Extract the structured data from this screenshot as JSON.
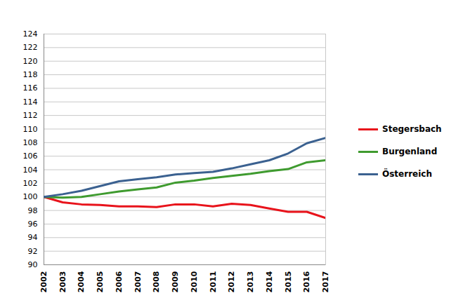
{
  "chart_data": {
    "type": "line",
    "x": [
      2002,
      2003,
      2004,
      2005,
      2006,
      2007,
      2008,
      2009,
      2010,
      2011,
      2012,
      2013,
      2014,
      2015,
      2016,
      2017
    ],
    "series": [
      {
        "name": "Stegersbach",
        "color": "#e8131b",
        "values": [
          100,
          99.2,
          98.9,
          98.8,
          98.6,
          98.6,
          98.5,
          98.9,
          98.9,
          98.6,
          99.0,
          98.8,
          98.3,
          97.8,
          97.8,
          96.9
        ]
      },
      {
        "name": "Burgenland",
        "color": "#3f9b2f",
        "values": [
          100,
          99.9,
          100.0,
          100.4,
          100.8,
          101.1,
          101.4,
          102.1,
          102.4,
          102.8,
          103.1,
          103.4,
          103.8,
          104.1,
          105.1,
          105.4
        ]
      },
      {
        "name": "Österreich",
        "color": "#3b6190",
        "values": [
          100,
          100.4,
          100.9,
          101.6,
          102.3,
          102.6,
          102.9,
          103.3,
          103.5,
          103.7,
          104.2,
          104.8,
          105.4,
          106.4,
          107.9,
          108.7
        ]
      }
    ],
    "xlim": [
      2002,
      2017
    ],
    "xticks": [
      2002,
      2003,
      2004,
      2005,
      2006,
      2007,
      2008,
      2009,
      2010,
      2011,
      2012,
      2013,
      2014,
      2015,
      2016,
      2017
    ],
    "ylim": [
      90,
      124
    ],
    "yticks": [
      90,
      92,
      94,
      96,
      98,
      100,
      102,
      104,
      106,
      108,
      110,
      112,
      114,
      116,
      118,
      120,
      122,
      124
    ],
    "grid": true,
    "legend": "right"
  }
}
